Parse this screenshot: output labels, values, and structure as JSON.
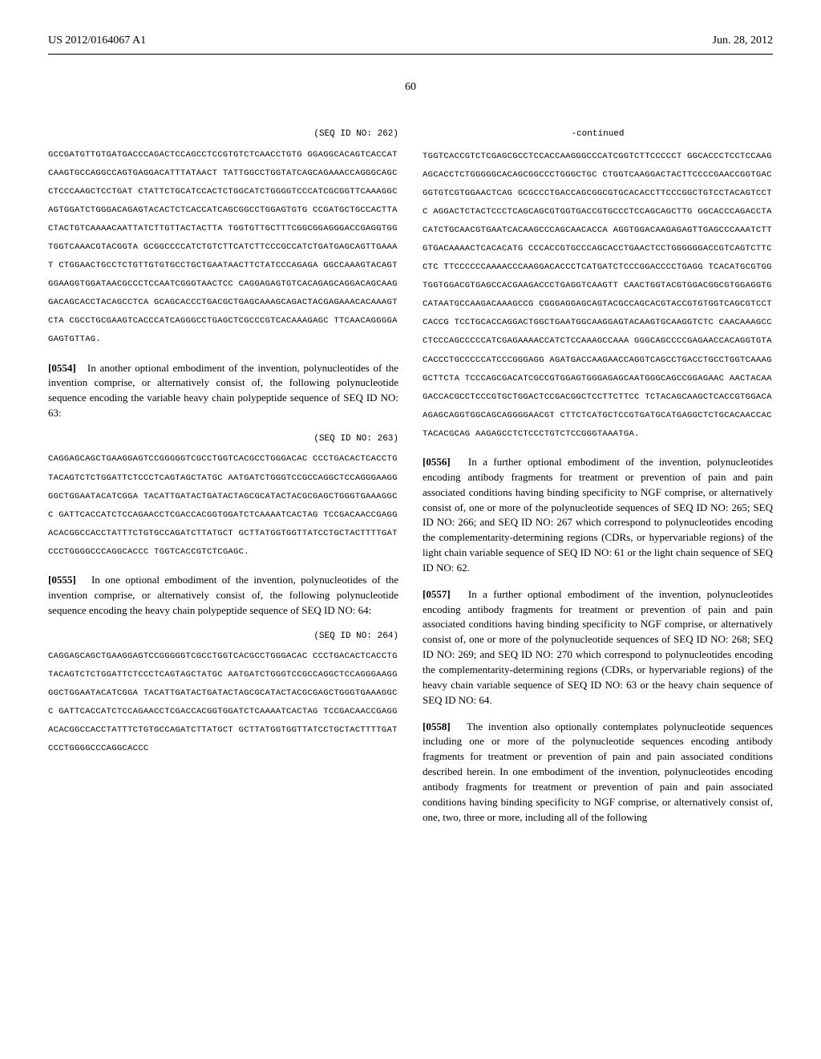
{
  "header": {
    "left": "US 2012/0164067 A1",
    "right": "Jun. 28, 2012"
  },
  "page_number": "60",
  "col_left": {
    "seq262_label": "(SEQ ID NO: 262)",
    "seq262": "GCCGATGTTGTGATGACCCAGACTCCAGCCTCCGTGTCTCAACCTGTG GGAGGCACAGTCACCATCAAGTGCCAGGCCAGTGAGGACATTTATAACT TATTGGCCTGGTATCAGCAGAAACCAGGGCAGCCTCCCAAGCTCCTGAT CTATTCTGCATCCACTCTGGCATCTGGGGTCCCATCGCGGTTCAAAGGC AGTGGATCTGGGACAGAGTACACTCTCACCATCAGCGGCCTGGAGTGTG CCGATGCTGCCACTTACTACTGTCAAAACAATTATCTTGTTACTACTTA TGGTGTTGCTTTCGGCGGAGGGACCGAGGTGGTGGTCAAACGTACGGTA GCGGCCCCATCTGTCTTCATCTTCCCGCCATCTGATGAGCAGTTGAAAT CTGGAACTGCCTCTGTTGTGTGCCTGCTGAATAACTTCTATCCCAGAGA GGCCAAAGTACAGTGGAAGGTGGATAACGCCCTCCAATCGGGTAACTCC CAGGAGAGTGTCACAGAGCAGGACAGCAAGGACAGCACCTACAGCCTCA GCAGCACCCTGACGCTGAGCAAAGCAGACTACGAGAAACACAAAGTCTA CGCCTGCGAAGTCACCCATCAGGGCCTGAGCTCGCCCGTCACAAAGAGC TTCAACAGGGGAGAGTGTTAG.",
    "para554_num": "[0554]",
    "para554": "In another optional embodiment of the invention, polynucleotides of the invention comprise, or alternatively consist of, the following polynucleotide sequence encoding the variable heavy chain polypeptide sequence of SEQ ID NO: 63:",
    "seq263_label": "(SEQ ID NO: 263)",
    "seq263": "CAGGAGCAGCTGAAGGAGTCCGGGGGTCGCCTGGTCACGCCTGGGACAC CCCTGACACTCACCTGTACAGTCTCTGGATTCTCCCTCAGTAGCTATGC AATGATCTGGGTCCGCCAGGCTCCAGGGAAGGGGCTGGAATACATCGGA TACATTGATACTGATACTAGCGCATACTACGCGAGCTGGGTGAAAGGCC GATTCACCATCTCCAGAACCTCGACCACGGTGGATCTCAAAATCACTAG TCCGACAACCGAGGACACGGCCACCTATTTCTGTGCCAGATCTTATGCT GCTTATGGTGGTTATCCTGCTACTTTTGATCCCTGGGGCCCAGGCACCC TGGTCACCGTCTCGAGC.",
    "para555_num": "[0555]",
    "para555": "In one optional embodiment of the invention, polynucleotides of the invention comprise, or alternatively consist of, the following polynucleotide sequence encoding the heavy chain polypeptide sequence of SEQ ID NO: 64:",
    "seq264_label": "(SEQ ID NO: 264)",
    "seq264": "CAGGAGCAGCTGAAGGAGTCCGGGGGTCGCCTGGTCACGCCTGGGACAC CCCTGACACTCACCTGTACAGTCTCTGGATTCTCCCTCAGTAGCTATGC AATGATCTGGGTCCGCCAGGCTCCAGGGAAGGGGCTGGAATACATCGGA TACATTGATACTGATACTAGCGCATACTACGCGAGCTGGGTGAAAGGCC GATTCACCATCTCCAGAACCTCGACCACGGTGGATCTCAAAATCACTAG TCCGACAACCGAGGACACGGCCACCTATTTCTGTGCCAGATCTTATGCT GCTTATGGTGGTTATCCTGCTACTTTTGATCCCTGGGGCCCAGGCACCC"
  },
  "col_right": {
    "continued_label": "-continued",
    "seq_continued": "TGGTCACCGTCTCGAGCGCCTCCACCAAGGGCCCATCGGTCTTCCCCCT GGCACCCTCCTCCAAGAGCACCTCTGGGGGCACAGCGGCCCTGGGCTGC CTGGTCAAGGACTACTTCCCCGAACCGGTGACGGTGTCGTGGAACTCAG GCGCCCTGACCAGCGGCGTGCACACCTTCCCGGCTGTCCTACAGTCCTC AGGACTCTACTCCCTCAGCAGCGTGGTGACCGTGCCCTCCAGCAGCTTG GGCACCCAGACCTACATCTGCAACGTGAATCACAAGCCCAGCAACACCA AGGTGGACAAGAGAGTTGAGCCCAAATCTTGTGACAAAACTCACACATG CCCACCGTGCCCAGCACCTGAACTCCTGGGGGGACCGTCAGTCTTCCTC TTCCCCCCAAAACCCAAGGACACCCTCATGATCTCCCGGACCCCTGAGG TCACATGCGTGGTGGTGGACGTGAGCCACGAAGACCCTGAGGTCAAGTT CAACTGGTACGTGGACGGCGTGGAGGTGCATAATGCCAAGACAAAGCCG CGGGAGGAGCAGTACGCCAGCACGTACCGTGTGGTCAGCGTCCTCACCG TCCTGCACCAGGACTGGCTGAATGGCAAGGAGTACAAGTGCAAGGTCTC CAACAAAGCCCTCCCAGCCCCCATCGAGAAAACCATCTCCAAAGCCAAA GGGCAGCCCCGAGAACCACAGGTGTACACCCTGCCCCCATCCCGGGAGG AGATGACCAAGAACCAGGTCAGCCTGACCTGCCTGGTCAAAGGCTTCTA TCCCAGCGACATCGCCGTGGAGTGGGAGAGCAATGGGCAGCCGGAGAAC AACTACAAGACCACGCCTCCCGTGCTGGACTCCGACGGCTCCTTCTTCC TCTACAGCAAGCTCACCGTGGACAAGAGCAGGTGGCAGCAGGGGAACGT CTTCTCATGCTCCGTGATGCATGAGGCTCTGCACAACCACTACACGCAG AAGAGCCTCTCCCTGTCTCCGGGTAAATGA.",
    "para556_num": "[0556]",
    "para556": "In a further optional embodiment of the invention, polynucleotides encoding antibody fragments for treatment or prevention of pain and pain associated conditions having binding specificity to NGF comprise, or alternatively consist of, one or more of the polynucleotide sequences of SEQ ID NO: 265; SEQ ID NO: 266; and SEQ ID NO: 267 which correspond to polynucleotides encoding the complementarity-determining regions (CDRs, or hypervariable regions) of the light chain variable sequence of SEQ ID NO: 61 or the light chain sequence of SEQ ID NO: 62.",
    "para557_num": "[0557]",
    "para557": "In a further optional embodiment of the invention, polynucleotides encoding antibody fragments for treatment or prevention of pain and pain associated conditions having binding specificity to NGF comprise, or alternatively consist of, one or more of the polynucleotide sequences of SEQ ID NO: 268; SEQ ID NO: 269; and SEQ ID NO: 270 which correspond to polynucleotides encoding the complementarity-determining regions (CDRs, or hypervariable regions) of the heavy chain variable sequence of SEQ ID NO: 63 or the heavy chain sequence of SEQ ID NO: 64.",
    "para558_num": "[0558]",
    "para558": "The invention also optionally contemplates polynucleotide sequences including one or more of the polynucleotide sequences encoding antibody fragments for treatment or prevention of pain and pain associated conditions described herein. In one embodiment of the invention, polynucleotides encoding antibody fragments for treatment or prevention of pain and pain associated conditions having binding specificity to NGF comprise, or alternatively consist of, one, two, three or more, including all of the following"
  }
}
